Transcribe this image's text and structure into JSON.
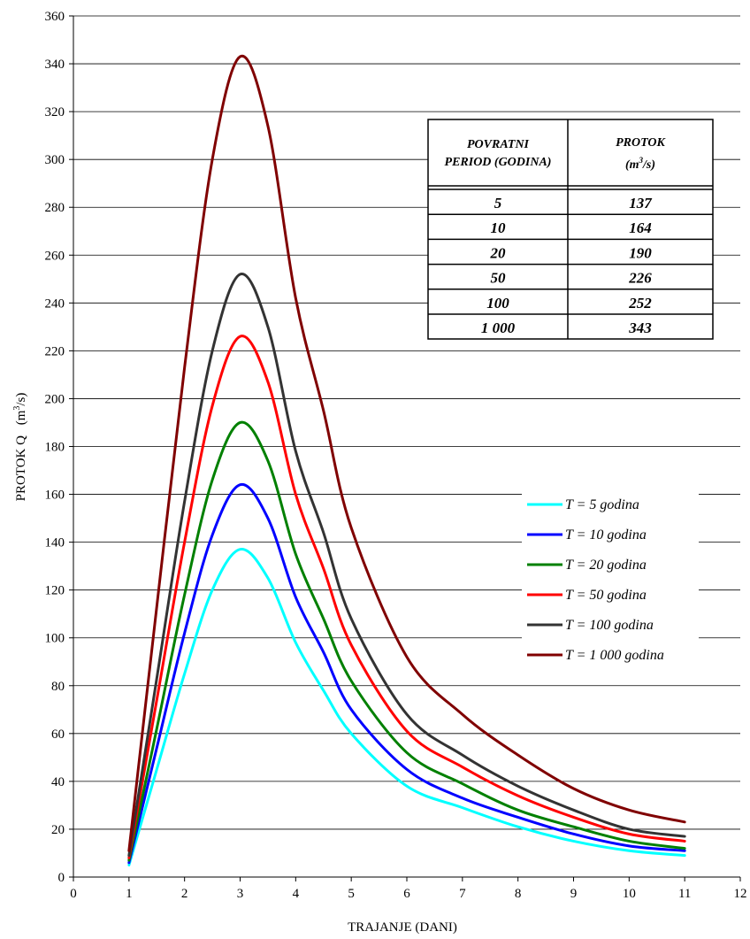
{
  "chart_data": {
    "type": "line",
    "xlabel": "TRAJANJE (DANI)",
    "ylabel_text": "PROTOK    Q",
    "ylabel_unit_base": "(m",
    "ylabel_unit_sup": "3",
    "ylabel_unit_end": "/s)",
    "xlim": [
      0,
      12
    ],
    "ylim": [
      0,
      360
    ],
    "x_ticks": [
      "0",
      "1",
      "2",
      "3",
      "4",
      "5",
      "6",
      "7",
      "8",
      "9",
      "10",
      "11",
      "12"
    ],
    "y_ticks": [
      "0",
      "20",
      "40",
      "60",
      "80",
      "100",
      "120",
      "140",
      "160",
      "180",
      "200",
      "220",
      "240",
      "260",
      "280",
      "300",
      "320",
      "340",
      "360"
    ],
    "grid": "horizontal",
    "legend_position": "right-middle",
    "x": [
      1,
      1.5,
      2,
      2.5,
      3,
      3.5,
      4,
      4.5,
      5,
      6,
      7,
      8,
      9,
      10,
      11
    ],
    "series": [
      {
        "name": "T = 5 godina",
        "color": "#00FFFF",
        "values": [
          5,
          45,
          85,
          120,
          137,
          125,
          98,
          78,
          60,
          38,
          29,
          21,
          15,
          11,
          9
        ]
      },
      {
        "name": "T = 10 godina",
        "color": "#0000FF",
        "values": [
          6,
          54,
          102,
          143,
          164,
          150,
          117,
          94,
          70,
          45,
          33,
          25,
          18,
          13,
          11
        ]
      },
      {
        "name": "T = 20 godina",
        "color": "#008000",
        "values": [
          7,
          62,
          118,
          166,
          190,
          174,
          135,
          108,
          82,
          52,
          39,
          28,
          21,
          15,
          12
        ]
      },
      {
        "name": "T = 50 godina",
        "color": "#FF0000",
        "values": [
          8,
          74,
          140,
          197,
          226,
          207,
          160,
          129,
          97,
          61,
          46,
          34,
          25,
          18,
          15
        ]
      },
      {
        "name": "T = 100 godina",
        "color": "#333333",
        "values": [
          9,
          83,
          157,
          220,
          252,
          230,
          178,
          144,
          108,
          68,
          51,
          38,
          28,
          20,
          17
        ]
      },
      {
        "name": "T = 1 000 godina",
        "color": "#800000",
        "values": [
          11,
          113,
          213,
          300,
          343,
          314,
          242,
          195,
          146,
          92,
          68,
          51,
          37,
          28,
          23
        ]
      }
    ],
    "table": {
      "headers": [
        [
          "POVRATNI",
          "PERIOD (GODINA)"
        ],
        [
          "PROTOK"
        ]
      ],
      "unit_header_base": "(m",
      "unit_header_sup": "3",
      "unit_header_end": "/s)",
      "rows": [
        [
          "5",
          "137"
        ],
        [
          "10",
          "164"
        ],
        [
          "20",
          "190"
        ],
        [
          "50",
          "226"
        ],
        [
          "100",
          "252"
        ],
        [
          "1 000",
          "343"
        ]
      ]
    }
  }
}
